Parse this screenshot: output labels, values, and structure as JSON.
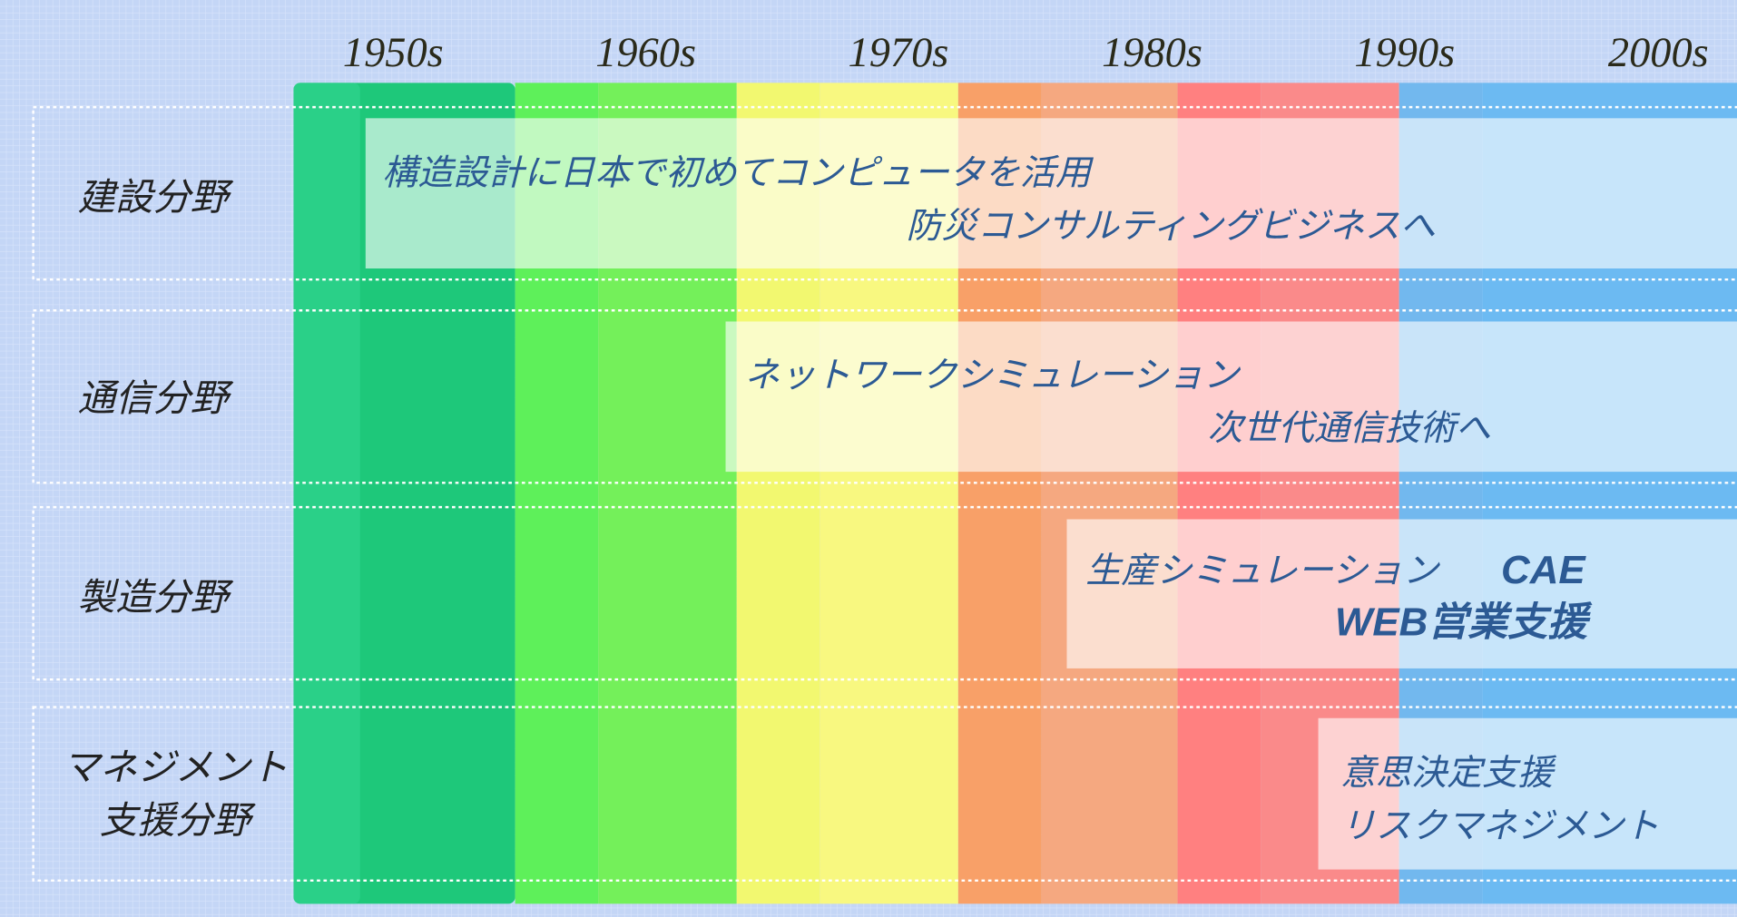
{
  "decades": [
    "1950s",
    "1960s",
    "1970s",
    "1980s",
    "1990s",
    "2000s"
  ],
  "rows": [
    {
      "label": [
        "建設分野"
      ],
      "texts": [
        "構造設計に日本で初めてコンピュータを活用",
        "防災コンサルティングビジネスへ"
      ]
    },
    {
      "label": [
        "通信分野"
      ],
      "texts": [
        "ネットワークシミュレーション",
        "次世代通信技術へ"
      ]
    },
    {
      "label": [
        "製造分野"
      ],
      "texts": [
        "生産シミュレーション",
        "CAE",
        "WEB営業支援"
      ]
    },
    {
      "label": [
        "マネジメント",
        "支援分野"
      ],
      "texts": [
        "意思決定支援",
        "リスクマネジメント"
      ]
    }
  ]
}
